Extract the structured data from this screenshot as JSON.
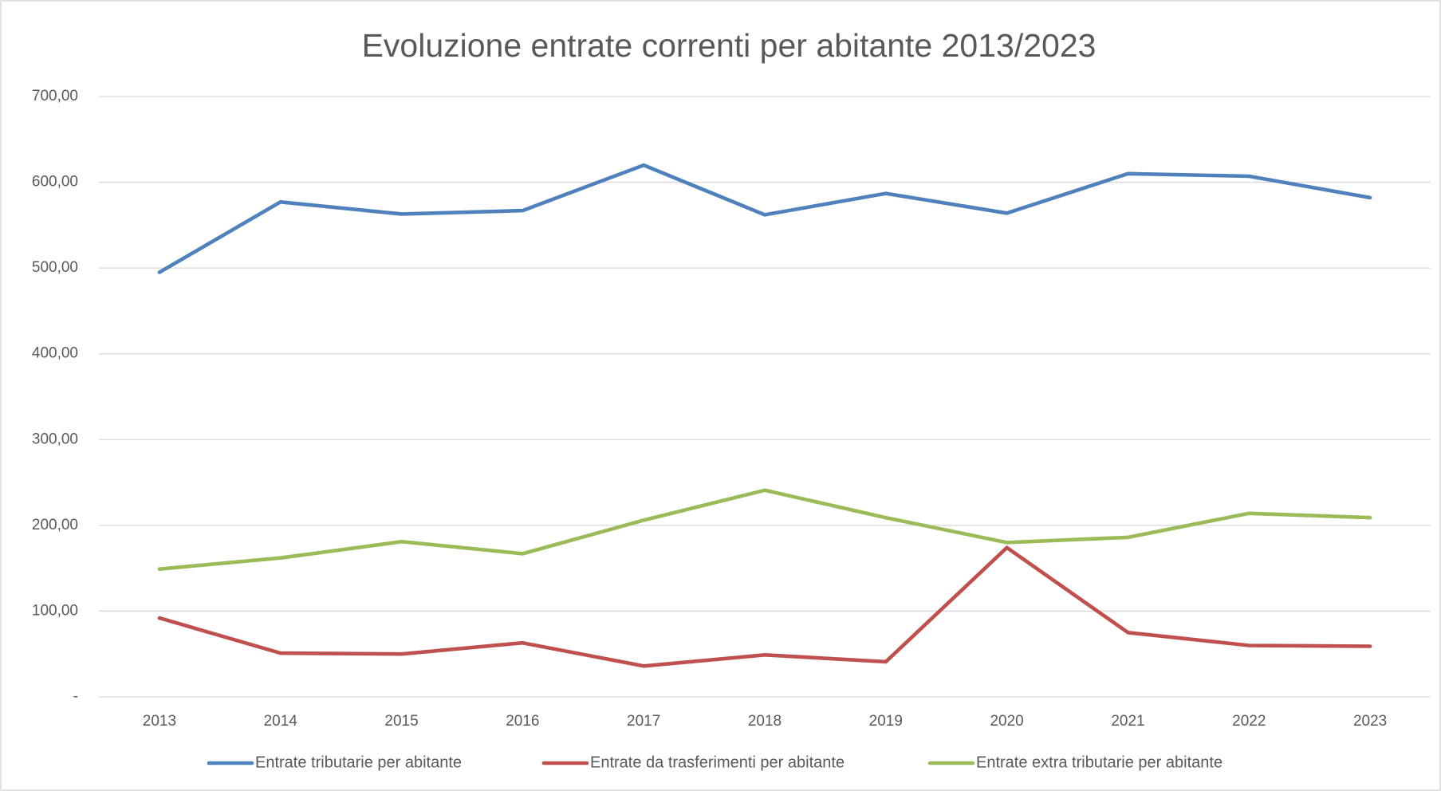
{
  "chart_data": {
    "type": "line",
    "title": "Evoluzione entrate correnti per abitante 2013/2023",
    "categories": [
      "2013",
      "2014",
      "2015",
      "2016",
      "2017",
      "2018",
      "2019",
      "2020",
      "2021",
      "2022",
      "2023"
    ],
    "series": [
      {
        "name": "Entrate tributarie per abitante",
        "color": "#4f81bd",
        "values": [
          495,
          577,
          563,
          567,
          620,
          562,
          587,
          564,
          610,
          607,
          582
        ]
      },
      {
        "name": "Entrate da trasferimenti per abitante",
        "color": "#c0504d",
        "values": [
          92,
          51,
          50,
          63,
          36,
          49,
          41,
          174,
          75,
          60,
          59
        ]
      },
      {
        "name": "Entrate extra tributarie per abitante",
        "color": "#9bbb59",
        "values": [
          149,
          162,
          181,
          167,
          206,
          241,
          209,
          180,
          186,
          214,
          209
        ]
      }
    ],
    "ylim": [
      0,
      700
    ],
    "yticks": [
      {
        "value": 0,
        "label": "-"
      },
      {
        "value": 100,
        "label": "100,00"
      },
      {
        "value": 200,
        "label": "200,00"
      },
      {
        "value": 300,
        "label": "300,00"
      },
      {
        "value": 400,
        "label": "400,00"
      },
      {
        "value": 500,
        "label": "500,00"
      },
      {
        "value": 600,
        "label": "600,00"
      },
      {
        "value": 700,
        "label": "700,00"
      }
    ],
    "grid": true,
    "legend": "bottom"
  }
}
